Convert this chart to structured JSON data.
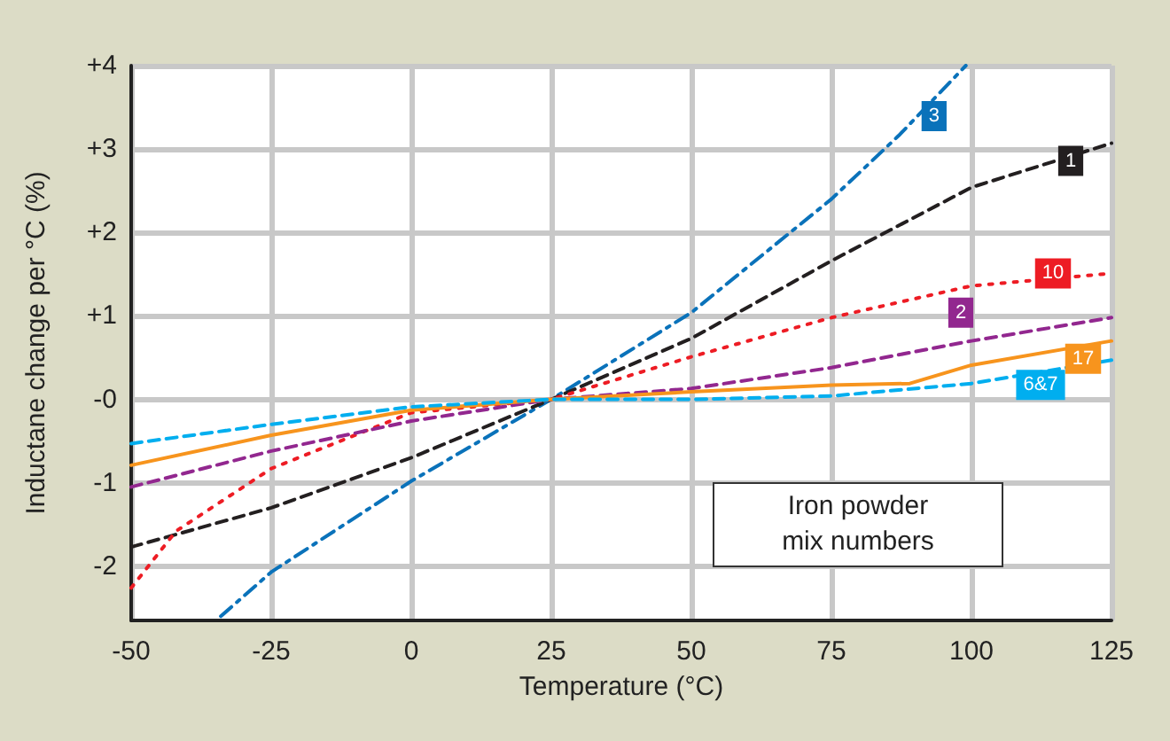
{
  "chart_data": {
    "type": "line",
    "xlabel": "Temperature (°C)",
    "ylabel": "Inductane change per °C (%)",
    "xlim": [
      -50,
      125
    ],
    "xticks": [
      -50,
      -25,
      0,
      25,
      50,
      75,
      100,
      125
    ],
    "ylim": [
      -2.65,
      4
    ],
    "yticks": [
      {
        "value": 4,
        "label": "+4"
      },
      {
        "value": 3,
        "label": "+3"
      },
      {
        "value": 2,
        "label": "+2"
      },
      {
        "value": 1,
        "label": "+1"
      },
      {
        "value": 0,
        "label": "-0"
      },
      {
        "value": -1,
        "label": "-1"
      },
      {
        "value": -2,
        "label": "-2"
      }
    ],
    "grid": true,
    "marker": "none",
    "annotations": [
      "Iron powder\nmix numbers"
    ],
    "series": [
      {
        "name": "3",
        "color": "#0a72ba",
        "line_style": "dashdot",
        "x": [
          -34,
          -25,
          0,
          25,
          50,
          75,
          87,
          99
        ],
        "values": [
          -2.6,
          -2.07,
          -0.98,
          0,
          1.04,
          2.4,
          3.16,
          4.0
        ]
      },
      {
        "name": "1",
        "color": "#231f20",
        "line_style": "dashed",
        "x": [
          -50,
          -25,
          0,
          25,
          50,
          75,
          100,
          125
        ],
        "values": [
          -1.77,
          -1.3,
          -0.7,
          0,
          0.73,
          1.66,
          2.54,
          3.07
        ]
      },
      {
        "name": "10",
        "color": "#ed1c24",
        "line_style": "dotted",
        "x": [
          -50,
          -42,
          -25,
          0,
          25,
          50,
          75,
          100,
          125
        ],
        "values": [
          -2.26,
          -1.58,
          -0.83,
          -0.16,
          0,
          0.51,
          0.98,
          1.36,
          1.51
        ]
      },
      {
        "name": "2",
        "color": "#92278f",
        "line_style": "dashed",
        "x": [
          -50,
          -25,
          0,
          25,
          50,
          75,
          100,
          125
        ],
        "values": [
          -1.05,
          -0.62,
          -0.26,
          0,
          0.13,
          0.38,
          0.7,
          0.98
        ]
      },
      {
        "name": "17",
        "color": "#f7941d",
        "line_style": "solid",
        "x": [
          -50,
          -25,
          0,
          25,
          50,
          75,
          89,
          100,
          125
        ],
        "values": [
          -0.79,
          -0.43,
          -0.13,
          0,
          0.09,
          0.17,
          0.19,
          0.41,
          0.7
        ]
      },
      {
        "name": "6&7",
        "color": "#00aeef",
        "line_style": "dashed",
        "x": [
          -50,
          -25,
          0,
          25,
          50,
          75,
          100,
          125
        ],
        "values": [
          -0.53,
          -0.3,
          -0.09,
          0,
          0,
          0.04,
          0.19,
          0.47
        ]
      }
    ]
  }
}
